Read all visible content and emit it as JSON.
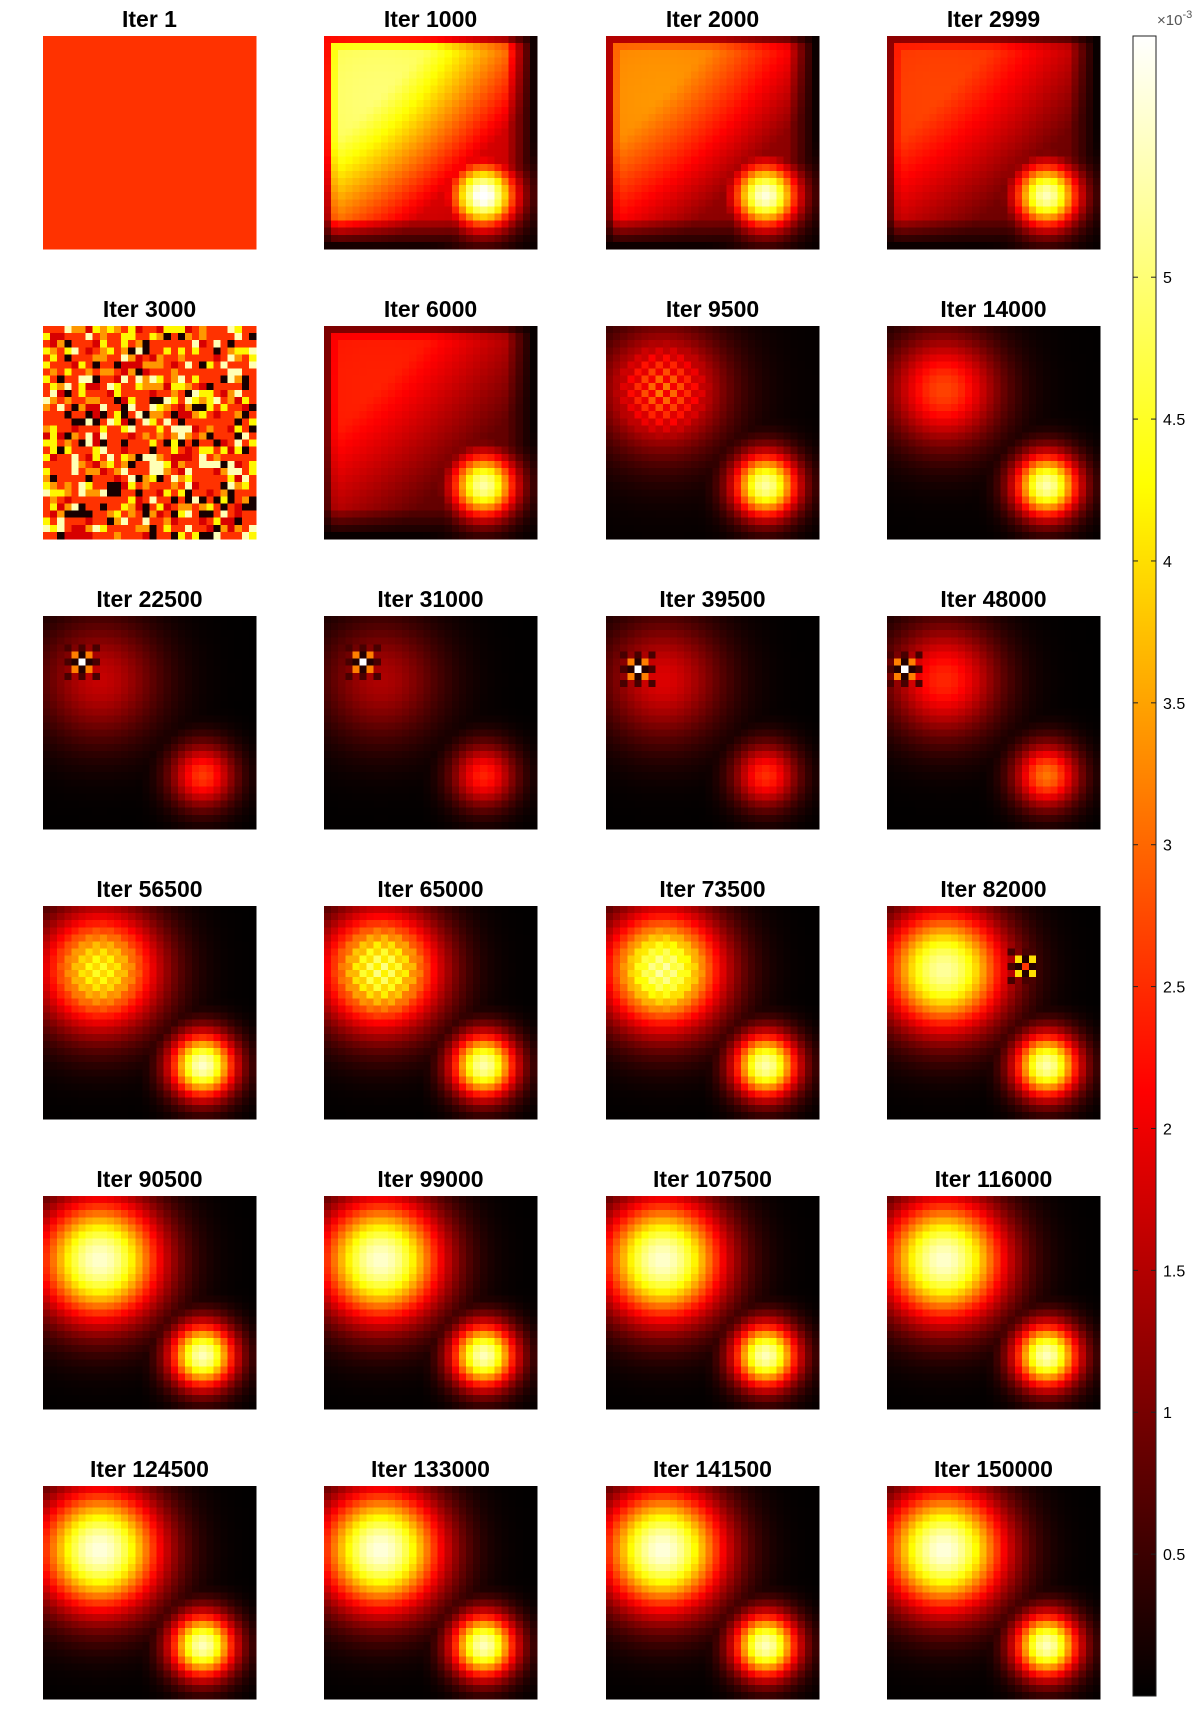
{
  "chart_data": {
    "type": "heatmap",
    "grid_size": 30,
    "colormap": "hot",
    "colorbar": {
      "min": 0,
      "max": 5.85,
      "ticks": [
        0.5,
        1,
        1.5,
        2,
        2.5,
        3,
        3.5,
        4,
        4.5,
        5
      ],
      "tick_labels": [
        "0.5",
        "1",
        "1.5",
        "2",
        "2.5",
        "3",
        "3.5",
        "4",
        "4.5",
        "5"
      ],
      "exponent_label": "×10",
      "exponent_power": "-3"
    },
    "panels": [
      {
        "title": "Iter 1",
        "blob1": 0.0,
        "r1": 5.0,
        "blob2": 0.0,
        "bg": 2.55,
        "fade": 0.0,
        "noise": 0,
        "kind": "flat"
      },
      {
        "title": "Iter 1000",
        "blob1": 4.2,
        "r1": 7.0,
        "blob2": 5.8,
        "bg": 0.8,
        "fade": 0.3,
        "noise": 0,
        "kind": "diffuse"
      },
      {
        "title": "Iter 2000",
        "blob1": 2.9,
        "r1": 7.0,
        "blob2": 5.5,
        "bg": 0.5,
        "fade": 0.5,
        "noise": 0,
        "kind": "diffuse"
      },
      {
        "title": "Iter 2999",
        "blob1": 2.3,
        "r1": 7.0,
        "blob2": 5.3,
        "bg": 0.4,
        "fade": 0.6,
        "noise": 0,
        "kind": "diffuse"
      },
      {
        "title": "Iter 3000",
        "blob1": 0.0,
        "r1": 5.0,
        "blob2": 0.0,
        "bg": 2.55,
        "fade": 0.0,
        "noise": 1,
        "kind": "random"
      },
      {
        "title": "Iter 6000",
        "blob1": 2.1,
        "r1": 7.0,
        "blob2": 5.2,
        "bg": 0.3,
        "fade": 0.7,
        "noise": 0,
        "kind": "diffuse"
      },
      {
        "title": "Iter 9500",
        "blob1": 2.4,
        "r1": 6.0,
        "blob2": 5.2,
        "bg": 0.2,
        "fade": 0.8,
        "noise": 0.6,
        "kind": "checker"
      },
      {
        "title": "Iter 14000",
        "blob1": 2.6,
        "r1": 5.5,
        "blob2": 5.3,
        "bg": 0.1,
        "fade": 0.9,
        "noise": 0,
        "kind": "blobs"
      },
      {
        "title": "Iter 22500",
        "blob1": 1.6,
        "r1": 6.0,
        "blob2": 2.6,
        "bg": 0.05,
        "fade": 1.0,
        "noise": 0,
        "kind": "hot_pixel",
        "hx": 5,
        "hy": 6
      },
      {
        "title": "Iter 31000",
        "blob1": 1.4,
        "r1": 6.0,
        "blob2": 2.4,
        "bg": 0.05,
        "fade": 1.0,
        "noise": 0,
        "kind": "hot_pixel",
        "hx": 5,
        "hy": 6
      },
      {
        "title": "Iter 39500",
        "blob1": 1.8,
        "r1": 6.0,
        "blob2": 2.5,
        "bg": 0.05,
        "fade": 1.0,
        "noise": 0,
        "kind": "hot_pixel",
        "hx": 4,
        "hy": 7
      },
      {
        "title": "Iter 48000",
        "blob1": 2.4,
        "r1": 5.5,
        "blob2": 3.1,
        "bg": 0.05,
        "fade": 1.0,
        "noise": 0,
        "kind": "hot_pixel",
        "hx": 2,
        "hy": 7
      },
      {
        "title": "Iter 56500",
        "blob1": 4.2,
        "r1": 6.0,
        "blob2": 5.5,
        "bg": 0.05,
        "fade": 1.0,
        "noise": 0.3,
        "kind": "checker"
      },
      {
        "title": "Iter 65000",
        "blob1": 4.6,
        "r1": 6.0,
        "blob2": 5.3,
        "bg": 0.05,
        "fade": 1.0,
        "noise": 0.5,
        "kind": "checker"
      },
      {
        "title": "Iter 73500",
        "blob1": 5.0,
        "r1": 6.0,
        "blob2": 5.3,
        "bg": 0.05,
        "fade": 1.0,
        "noise": 0.3,
        "kind": "checker"
      },
      {
        "title": "Iter 82000",
        "blob1": 5.2,
        "r1": 6.0,
        "blob2": 5.3,
        "bg": 0.05,
        "fade": 1.0,
        "noise": 0,
        "kind": "hot_pixel2",
        "hx": 19,
        "hy": 8
      },
      {
        "title": "Iter 90500",
        "blob1": 5.5,
        "r1": 6.0,
        "blob2": 5.4,
        "bg": 0.05,
        "fade": 1.0,
        "noise": 0,
        "kind": "blobs"
      },
      {
        "title": "Iter 99000",
        "blob1": 5.5,
        "r1": 6.0,
        "blob2": 5.4,
        "bg": 0.05,
        "fade": 1.0,
        "noise": 0,
        "kind": "blobs"
      },
      {
        "title": "Iter 107500",
        "blob1": 5.5,
        "r1": 6.0,
        "blob2": 5.4,
        "bg": 0.05,
        "fade": 1.0,
        "noise": 0,
        "kind": "blobs"
      },
      {
        "title": "Iter 116000",
        "blob1": 5.5,
        "r1": 6.0,
        "blob2": 5.4,
        "bg": 0.05,
        "fade": 1.0,
        "noise": 0,
        "kind": "blobs"
      },
      {
        "title": "Iter 124500",
        "blob1": 5.6,
        "r1": 6.0,
        "blob2": 5.4,
        "bg": 0.05,
        "fade": 1.0,
        "noise": 0,
        "kind": "blobs"
      },
      {
        "title": "Iter 133000",
        "blob1": 5.6,
        "r1": 6.0,
        "blob2": 5.4,
        "bg": 0.05,
        "fade": 1.0,
        "noise": 0,
        "kind": "blobs"
      },
      {
        "title": "Iter 141500",
        "blob1": 5.6,
        "r1": 6.0,
        "blob2": 5.4,
        "bg": 0.05,
        "fade": 1.0,
        "noise": 0,
        "kind": "blobs"
      },
      {
        "title": "Iter 150000",
        "blob1": 5.6,
        "r1": 6.0,
        "blob2": 5.4,
        "bg": 0.05,
        "fade": 1.0,
        "noise": 0,
        "kind": "blobs"
      }
    ]
  }
}
